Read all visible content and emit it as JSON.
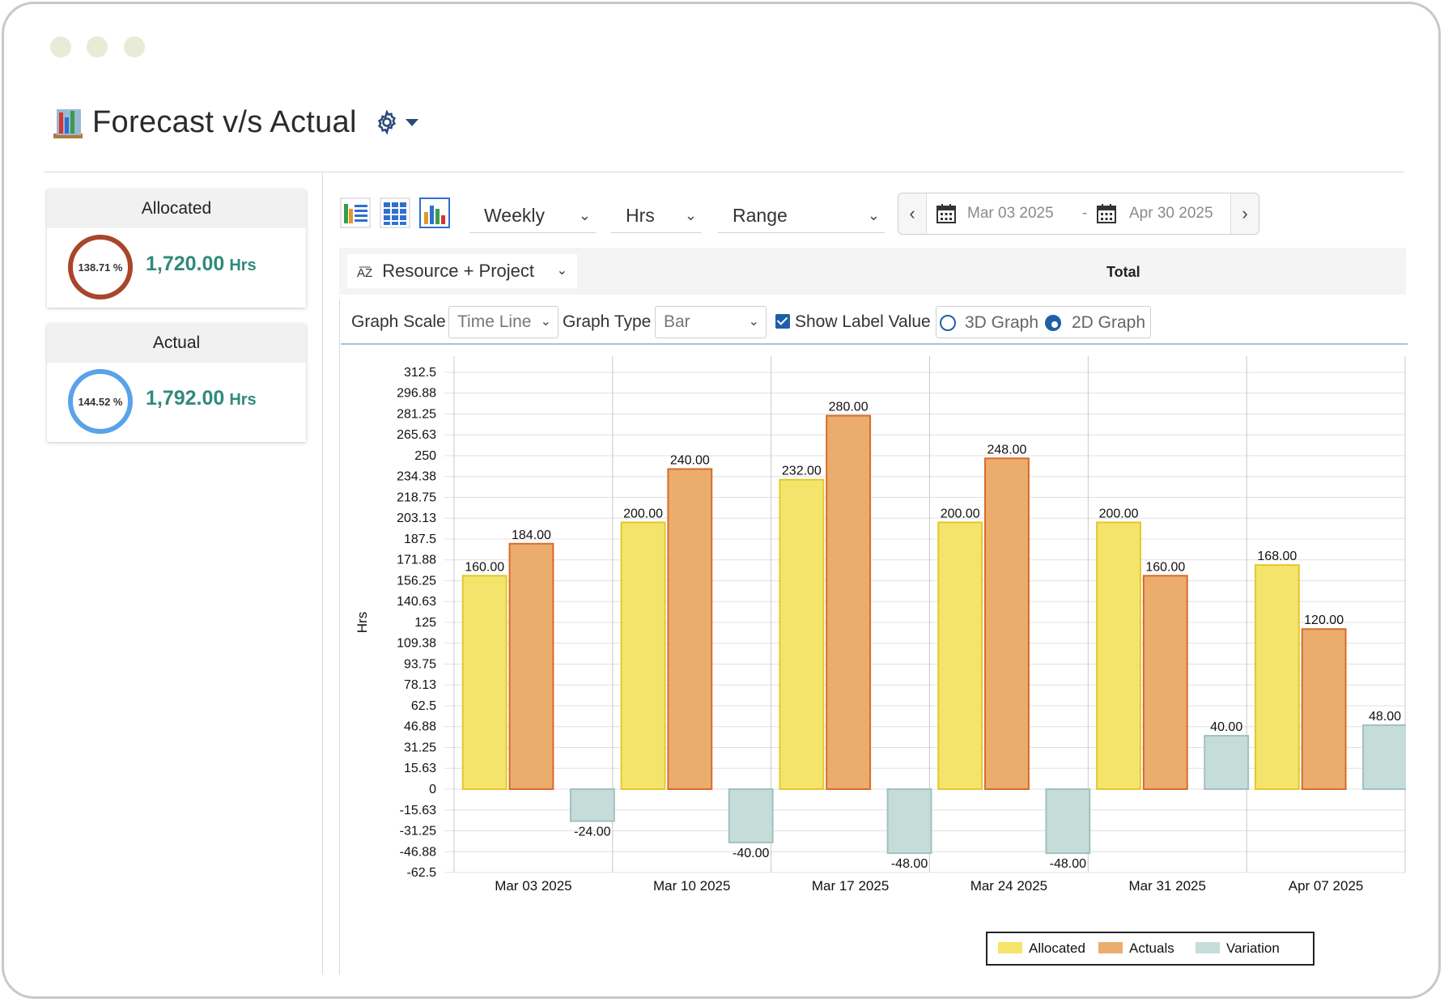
{
  "page": {
    "title": "Forecast v/s Actual"
  },
  "cards": [
    {
      "label": "Allocated",
      "percent": "138.71 %",
      "value": "1,720.00",
      "unit": "Hrs",
      "ring_color": "#a8462c"
    },
    {
      "label": "Actual",
      "percent": "144.52 %",
      "value": "1,792.00",
      "unit": "Hrs",
      "ring_color": "#5aa2ea"
    }
  ],
  "toolbar": {
    "period": "Weekly",
    "unit": "Hrs",
    "range": "Range",
    "date_from": "Mar 03 2025",
    "date_sep": "-",
    "date_to": "Apr 30 2025"
  },
  "grouping": {
    "label": "Resource + Project",
    "total_label": "Total"
  },
  "graph_options": {
    "scale_label": "Graph Scale",
    "scale_value": "Time Line",
    "type_label": "Graph Type",
    "type_value": "Bar",
    "show_label_value": "Show Label Value",
    "option_3d": "3D Graph",
    "option_2d": "2D Graph"
  },
  "chart_data": {
    "type": "bar",
    "ylabel": "Hrs",
    "ylim": [
      -62.5,
      312.5
    ],
    "yticks": [
      "312.5",
      "296.88",
      "281.25",
      "265.63",
      "250",
      "234.38",
      "218.75",
      "203.13",
      "187.5",
      "171.88",
      "156.25",
      "140.63",
      "125",
      "109.38",
      "93.75",
      "78.13",
      "62.5",
      "46.88",
      "31.25",
      "15.63",
      "0",
      "-15.63",
      "-31.25",
      "-46.88",
      "-62.5"
    ],
    "categories": [
      "Mar 03 2025",
      "Mar 10 2025",
      "Mar 17 2025",
      "Mar 24 2025",
      "Mar 31 2025",
      "Apr 07 2025"
    ],
    "series": [
      {
        "name": "Allocated",
        "color": "#f5e46c",
        "stroke": "#e2c92a",
        "values": [
          160,
          200,
          232,
          200,
          200,
          168
        ],
        "labels": [
          "160.00",
          "200.00",
          "232.00",
          "200.00",
          "200.00",
          "168.00"
        ]
      },
      {
        "name": "Actuals",
        "color": "#ebad6e",
        "stroke": "#d96a2a",
        "values": [
          184,
          240,
          280,
          248,
          160,
          120
        ],
        "labels": [
          "184.00",
          "240.00",
          "280.00",
          "248.00",
          "160.00",
          "120.00"
        ]
      },
      {
        "name": "Variation",
        "color": "#c6dcd9",
        "stroke": "#9fc2bf",
        "values": [
          -24,
          -40,
          -48,
          -48,
          40,
          48
        ],
        "labels": [
          "-24.00",
          "-40.00",
          "-48.00",
          "-48.00",
          "40.00",
          "48.00"
        ]
      }
    ],
    "legend": "bottom-right",
    "grid": true
  }
}
